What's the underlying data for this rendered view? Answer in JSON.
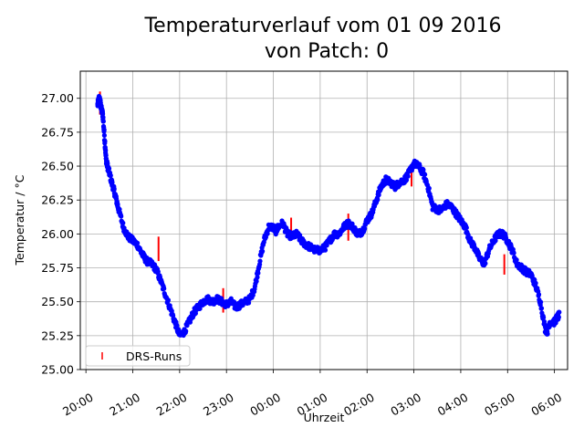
{
  "chart_data": {
    "type": "scatter",
    "title_line1": "Temperaturverlauf vom 01 09 2016",
    "title_line2": "von Patch: 0",
    "xlabel": "Uhrzeit",
    "ylabel": "Temperatur / °C",
    "x_ticks": [
      "20:00",
      "21:00",
      "22:00",
      "23:00",
      "00:00",
      "01:00",
      "02:00",
      "03:00",
      "04:00",
      "05:00",
      "06:00"
    ],
    "y_ticks": [
      "25.00",
      "25.25",
      "25.50",
      "25.75",
      "26.00",
      "26.25",
      "26.50",
      "26.75",
      "27.00"
    ],
    "xlim_hours": [
      19.88,
      22.28
    ],
    "ylim": [
      25.0,
      27.2
    ],
    "grid": true,
    "legend_position": "lower left",
    "series": [
      {
        "name": "",
        "color": "#0000ff",
        "marker": "dot",
        "x_hours_since_20": [
          0.25,
          0.28,
          0.3,
          0.33,
          0.36,
          0.4,
          0.43,
          0.46,
          0.5,
          0.55,
          0.6,
          0.65,
          0.7,
          0.8,
          0.9,
          1.0,
          1.1,
          1.2,
          1.3,
          1.4,
          1.5,
          1.6,
          1.7,
          1.8,
          1.9,
          2.0,
          2.1,
          2.2,
          2.3,
          2.4,
          2.5,
          2.6,
          2.7,
          2.8,
          2.9,
          3.0,
          3.1,
          3.2,
          3.3,
          3.4,
          3.5,
          3.6,
          3.7,
          3.8,
          3.9,
          4.0,
          4.05,
          4.1,
          4.2,
          4.3,
          4.4,
          4.5,
          4.6,
          4.7,
          4.8,
          4.9,
          5.0,
          5.1,
          5.2,
          5.3,
          5.4,
          5.5,
          5.6,
          5.7,
          5.8,
          5.9,
          6.0,
          6.1,
          6.2,
          6.3,
          6.4,
          6.5,
          6.6,
          6.7,
          6.8,
          6.9,
          7.0,
          7.1,
          7.2,
          7.3,
          7.4,
          7.5,
          7.6,
          7.7,
          7.8,
          7.9,
          8.0,
          8.1,
          8.2,
          8.3,
          8.4,
          8.5,
          8.6,
          8.7,
          8.8,
          8.9,
          9.0,
          9.1,
          9.2,
          9.3,
          9.4,
          9.5,
          9.6,
          9.7,
          9.8,
          9.85,
          9.9,
          10.0,
          10.05,
          10.1
        ],
        "y": [
          26.95,
          27.0,
          26.98,
          26.92,
          26.88,
          26.7,
          26.55,
          26.5,
          26.45,
          26.38,
          26.32,
          26.25,
          26.18,
          26.05,
          25.98,
          25.95,
          25.92,
          25.85,
          25.8,
          25.78,
          25.74,
          25.65,
          25.55,
          25.45,
          25.35,
          25.25,
          25.28,
          25.35,
          25.42,
          25.46,
          25.5,
          25.52,
          25.5,
          25.52,
          25.5,
          25.48,
          25.5,
          25.46,
          25.48,
          25.5,
          25.52,
          25.6,
          25.78,
          25.95,
          26.05,
          26.05,
          26.02,
          26.05,
          26.08,
          26.0,
          25.98,
          26.0,
          25.95,
          25.92,
          25.9,
          25.88,
          25.88,
          25.9,
          25.95,
          26.0,
          26.0,
          26.05,
          26.08,
          26.05,
          26.0,
          26.02,
          26.1,
          26.15,
          26.25,
          26.35,
          26.4,
          26.38,
          26.35,
          26.38,
          26.4,
          26.45,
          26.52,
          26.5,
          26.45,
          26.35,
          26.2,
          26.18,
          26.18,
          26.22,
          26.2,
          26.15,
          26.1,
          26.05,
          25.95,
          25.9,
          25.82,
          25.78,
          25.88,
          25.95,
          26.0,
          26.0,
          25.95,
          25.88,
          25.78,
          25.75,
          25.72,
          25.7,
          25.62,
          25.5,
          25.3,
          25.28,
          25.35,
          25.35,
          25.38,
          25.4
        ]
      }
    ],
    "drs_runs": {
      "name": "DRS-Runs",
      "color": "#ff0000",
      "x_hours_since_20": [
        0.3,
        1.55,
        2.93,
        4.38,
        5.6,
        6.95,
        8.93
      ],
      "y_ranges": [
        [
          26.88,
          27.05
        ],
        [
          25.8,
          25.98
        ],
        [
          25.42,
          25.6
        ],
        [
          25.95,
          26.12
        ],
        [
          25.95,
          26.15
        ],
        [
          26.35,
          26.5
        ],
        [
          25.7,
          25.85
        ]
      ]
    }
  }
}
